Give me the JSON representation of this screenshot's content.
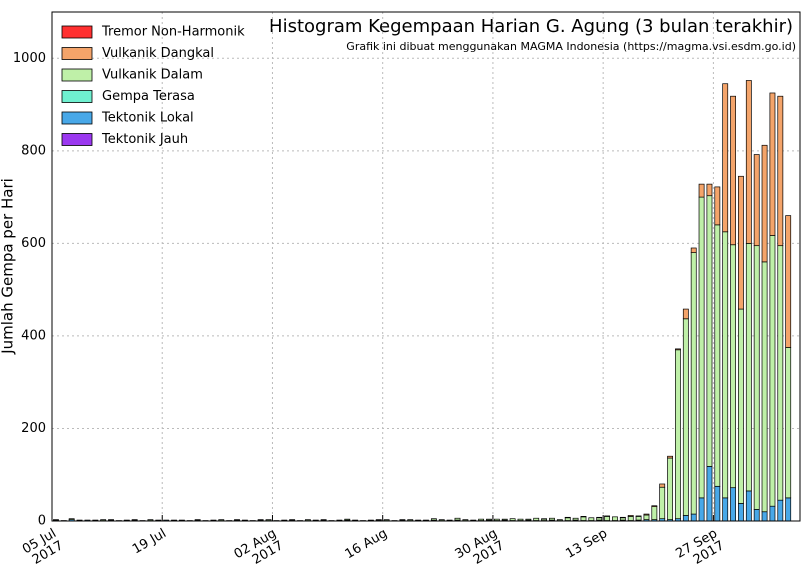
{
  "chart_data": {
    "type": "stacked-bar",
    "title": "Histogram Kegempaan Harian G. Agung (3 bulan terakhir)",
    "subtitle": "Grafik ini dibuat menggunakan MAGMA Indonesia (https://magma.vsi.esdm.go.id)",
    "y_label": "Jumlah Gempa per Hari",
    "x": [
      "2017-07-05",
      "2017-07-06",
      "2017-07-07",
      "2017-07-08",
      "2017-07-09",
      "2017-07-10",
      "2017-07-11",
      "2017-07-12",
      "2017-07-13",
      "2017-07-14",
      "2017-07-15",
      "2017-07-16",
      "2017-07-17",
      "2017-07-18",
      "2017-07-19",
      "2017-07-20",
      "2017-07-21",
      "2017-07-22",
      "2017-07-23",
      "2017-07-24",
      "2017-07-25",
      "2017-07-26",
      "2017-07-27",
      "2017-07-28",
      "2017-07-29",
      "2017-07-30",
      "2017-07-31",
      "2017-08-01",
      "2017-08-02",
      "2017-08-03",
      "2017-08-04",
      "2017-08-05",
      "2017-08-06",
      "2017-08-07",
      "2017-08-08",
      "2017-08-09",
      "2017-08-10",
      "2017-08-11",
      "2017-08-12",
      "2017-08-13",
      "2017-08-14",
      "2017-08-15",
      "2017-08-16",
      "2017-08-17",
      "2017-08-18",
      "2017-08-19",
      "2017-08-20",
      "2017-08-21",
      "2017-08-22",
      "2017-08-23",
      "2017-08-24",
      "2017-08-25",
      "2017-08-26",
      "2017-08-27",
      "2017-08-28",
      "2017-08-29",
      "2017-08-30",
      "2017-08-31",
      "2017-09-01",
      "2017-09-02",
      "2017-09-03",
      "2017-09-04",
      "2017-09-05",
      "2017-09-06",
      "2017-09-07",
      "2017-09-08",
      "2017-09-09",
      "2017-09-10",
      "2017-09-11",
      "2017-09-12",
      "2017-09-13",
      "2017-09-14",
      "2017-09-15",
      "2017-09-16",
      "2017-09-17",
      "2017-09-18",
      "2017-09-19",
      "2017-09-20",
      "2017-09-21",
      "2017-09-22",
      "2017-09-23",
      "2017-09-24",
      "2017-09-25",
      "2017-09-26",
      "2017-09-27",
      "2017-09-28",
      "2017-09-29",
      "2017-09-30",
      "2017-10-01",
      "2017-10-02",
      "2017-10-03",
      "2017-10-04",
      "2017-10-05",
      "2017-10-06"
    ],
    "series": [
      {
        "name": "Tektonik Jauh",
        "color": "#9b38f0",
        "values": [
          0,
          0,
          0,
          0,
          0,
          0,
          0,
          0,
          0,
          0,
          0,
          0,
          0,
          0,
          0,
          0,
          0,
          0,
          0,
          0,
          0,
          0,
          0,
          0,
          0,
          0,
          0,
          0,
          0,
          0,
          0,
          0,
          0,
          0,
          0,
          0,
          0,
          0,
          0,
          0,
          0,
          0,
          0,
          0,
          0,
          0,
          0,
          0,
          0,
          0,
          0,
          0,
          0,
          0,
          0,
          0,
          0,
          0,
          0,
          0,
          0,
          0,
          0,
          0,
          0,
          0,
          0,
          0,
          0,
          0,
          0,
          0,
          0,
          0,
          0,
          0,
          0,
          0,
          0,
          0,
          0,
          0,
          0,
          0,
          0,
          0,
          0,
          0,
          0,
          0,
          0,
          0,
          0,
          0
        ]
      },
      {
        "name": "Tektonik Lokal",
        "color": "#48a8e8",
        "values": [
          2,
          1,
          3,
          1,
          2,
          1,
          1,
          2,
          1,
          1,
          2,
          1,
          1,
          1,
          2,
          1,
          1,
          1,
          2,
          1,
          1,
          1,
          1,
          2,
          1,
          1,
          2,
          1,
          1,
          1,
          2,
          1,
          1,
          1,
          2,
          1,
          1,
          2,
          1,
          1,
          1,
          2,
          1,
          1,
          2,
          1,
          1,
          1,
          2,
          1,
          1,
          2,
          1,
          1,
          1,
          2,
          1,
          2,
          1,
          1,
          2,
          1,
          1,
          2,
          1,
          1,
          2,
          1,
          1,
          2,
          1,
          1,
          2,
          1,
          2,
          3,
          3,
          5,
          3,
          5,
          12,
          15,
          50,
          118,
          75,
          50,
          72,
          38,
          65,
          25,
          20,
          32,
          45,
          50
        ]
      },
      {
        "name": "Gempa Terasa",
        "color": "#6ff0d0",
        "values": [
          0,
          0,
          0,
          0,
          0,
          0,
          0,
          0,
          0,
          0,
          0,
          0,
          0,
          0,
          0,
          0,
          0,
          0,
          0,
          0,
          0,
          0,
          0,
          0,
          0,
          0,
          0,
          0,
          0,
          0,
          0,
          0,
          0,
          0,
          0,
          0,
          0,
          0,
          0,
          0,
          0,
          0,
          0,
          0,
          0,
          0,
          0,
          0,
          0,
          0,
          0,
          0,
          0,
          0,
          0,
          0,
          0,
          0,
          0,
          0,
          0,
          0,
          0,
          0,
          0,
          0,
          0,
          0,
          0,
          0,
          0,
          0,
          0,
          0,
          0,
          0,
          0,
          0,
          0,
          0,
          0,
          0,
          0,
          0,
          0,
          0,
          0,
          0,
          0,
          0,
          0,
          0,
          0,
          0
        ]
      },
      {
        "name": "Vulkanik Dalam",
        "color": "#bff0a8",
        "values": [
          1,
          0,
          2,
          1,
          0,
          1,
          2,
          1,
          0,
          1,
          1,
          0,
          2,
          1,
          0,
          1,
          1,
          0,
          1,
          0,
          1,
          2,
          0,
          1,
          1,
          0,
          1,
          2,
          0,
          1,
          1,
          0,
          2,
          1,
          1,
          0,
          1,
          2,
          1,
          0,
          1,
          1,
          2,
          0,
          1,
          2,
          1,
          1,
          3,
          2,
          1,
          4,
          2,
          1,
          3,
          2,
          3,
          2,
          4,
          3,
          2,
          5,
          3,
          4,
          2,
          6,
          4,
          8,
          6,
          5,
          9,
          8,
          5,
          9,
          8,
          10,
          28,
          68,
          133,
          365,
          425,
          565,
          650,
          585,
          565,
          575,
          525,
          420,
          535,
          570,
          540,
          585,
          550,
          325
        ]
      },
      {
        "name": "Vulkanik Dangkal",
        "color": "#f4a46a",
        "values": [
          0,
          0,
          0,
          0,
          0,
          0,
          0,
          0,
          0,
          0,
          0,
          0,
          0,
          0,
          0,
          0,
          0,
          0,
          0,
          0,
          0,
          0,
          0,
          0,
          0,
          0,
          0,
          0,
          0,
          0,
          0,
          0,
          0,
          0,
          0,
          0,
          0,
          0,
          0,
          0,
          0,
          0,
          0,
          0,
          0,
          0,
          0,
          0,
          0,
          0,
          0,
          0,
          0,
          0,
          0,
          0,
          0,
          0,
          0,
          0,
          0,
          0,
          1,
          0,
          0,
          1,
          0,
          1,
          0,
          1,
          1,
          0,
          1,
          2,
          1,
          2,
          2,
          7,
          4,
          2,
          21,
          10,
          28,
          25,
          82,
          320,
          321,
          287,
          352,
          197,
          252,
          308,
          323,
          285
        ]
      },
      {
        "name": "Tremor Non-Harmonik",
        "color": "#ff3030",
        "values": [
          0,
          0,
          0,
          0,
          0,
          0,
          0,
          0,
          0,
          0,
          0,
          0,
          0,
          0,
          0,
          0,
          0,
          0,
          0,
          0,
          0,
          0,
          0,
          0,
          0,
          0,
          0,
          0,
          0,
          0,
          0,
          0,
          0,
          0,
          0,
          0,
          0,
          0,
          0,
          0,
          0,
          0,
          0,
          0,
          0,
          0,
          0,
          0,
          0,
          0,
          0,
          0,
          0,
          0,
          0,
          0,
          0,
          0,
          0,
          0,
          0,
          0,
          0,
          0,
          0,
          0,
          0,
          0,
          0,
          0,
          0,
          0,
          0,
          0,
          0,
          0,
          0,
          0,
          0,
          0,
          0,
          0,
          0,
          0,
          0,
          0,
          0,
          0,
          0,
          0,
          0,
          0,
          0,
          0
        ]
      }
    ],
    "xlim": [
      "2017-07-05",
      "2017-10-08"
    ],
    "xticks": [
      {
        "value": "2017-07-05",
        "label": "05 Jul\n2017"
      },
      {
        "value": "2017-07-19",
        "label": "19 Jul"
      },
      {
        "value": "2017-08-02",
        "label": "02 Aug\n2017"
      },
      {
        "value": "2017-08-16",
        "label": "16 Aug"
      },
      {
        "value": "2017-08-30",
        "label": "30 Aug\n2017"
      },
      {
        "value": "2017-09-13",
        "label": "13 Sep"
      },
      {
        "value": "2017-09-27",
        "label": "27 Sep\n2017"
      }
    ],
    "ylim": [
      0,
      1100
    ],
    "yticks": [
      0,
      200,
      400,
      600,
      800,
      1000
    ],
    "grid": true,
    "legend": "upper left"
  }
}
